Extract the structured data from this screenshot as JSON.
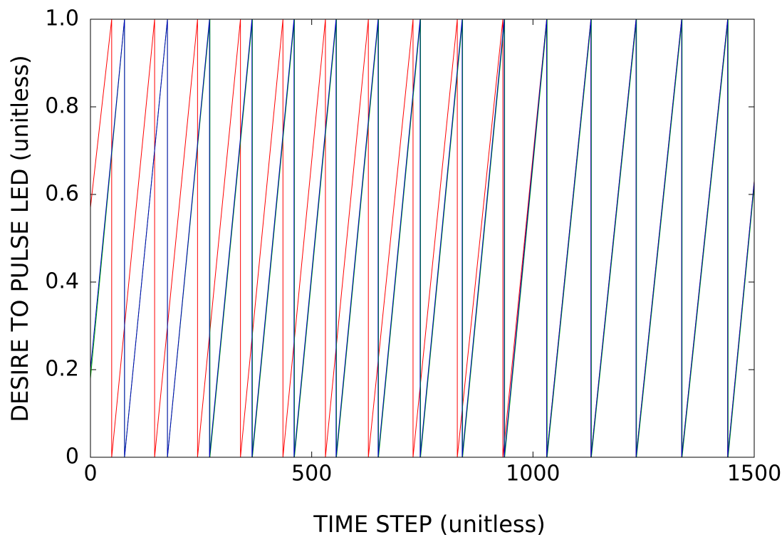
{
  "chart_data": {
    "type": "line",
    "xlabel": "TIME STEP (unitless)",
    "ylabel": "DESIRE TO PULSE LED (unitless)",
    "xlim": [
      0,
      1500
    ],
    "xticks": [
      0,
      500,
      1000,
      1500
    ],
    "ylim": [
      0,
      1
    ],
    "yticks": [
      0,
      0.2,
      0.4,
      0.6,
      0.8,
      {
        "value": 1,
        "label": "1.0"
      }
    ],
    "grid": false,
    "series": [
      {
        "color": "#ff0000",
        "x": [
          0,
          48,
          48,
          145,
          145,
          242,
          242,
          339,
          339,
          435,
          435,
          531,
          531,
          628,
          628,
          729,
          729,
          829,
          829,
          932,
          932,
          1031,
          1031,
          1131,
          1131,
          1233,
          1233,
          1336,
          1336,
          1440,
          1440,
          1500
        ],
        "values": [
          0.57,
          1,
          0,
          1,
          0,
          1,
          0,
          1,
          0,
          1,
          0,
          1,
          0,
          1,
          0,
          1,
          0,
          1,
          0,
          1,
          0,
          1,
          0,
          1,
          0,
          1,
          0,
          1,
          0,
          1,
          0,
          0.63
        ]
      },
      {
        "color": "#00b000",
        "x": [
          0,
          77,
          77,
          174,
          174,
          270,
          270,
          366,
          366,
          461,
          461,
          556,
          556,
          651,
          651,
          746,
          746,
          841,
          841,
          936,
          936,
          1032,
          1032,
          1132,
          1132,
          1234,
          1234,
          1337,
          1337,
          1441,
          1441,
          1500
        ],
        "values": [
          0.18,
          1,
          0,
          1,
          0,
          1,
          0,
          1,
          0,
          1,
          0,
          1,
          0,
          1,
          0,
          1,
          0,
          1,
          0,
          1,
          0,
          1,
          0,
          1,
          0,
          1,
          0,
          1,
          0,
          1,
          0,
          0.62
        ]
      },
      {
        "color": "#0000c0",
        "x": [
          0,
          77,
          77,
          174,
          174,
          269,
          269,
          365,
          365,
          460,
          460,
          555,
          555,
          650,
          650,
          745,
          745,
          840,
          840,
          935,
          935,
          1031,
          1031,
          1131,
          1131,
          1233,
          1233,
          1336,
          1336,
          1440,
          1440,
          1500
        ],
        "values": [
          0.2,
          1,
          0,
          1,
          0,
          1,
          0,
          1,
          0,
          1,
          0,
          1,
          0,
          1,
          0,
          1,
          0,
          1,
          0,
          1,
          0,
          1,
          0,
          1,
          0,
          1,
          0,
          1,
          0,
          1,
          0,
          0.63
        ]
      }
    ]
  }
}
